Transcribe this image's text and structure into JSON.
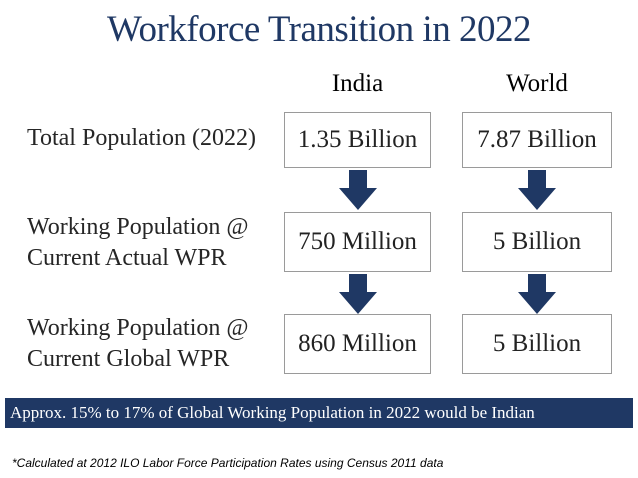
{
  "title": "Workforce Transition in 2022",
  "columns": {
    "india": "India",
    "world": "World"
  },
  "rows": [
    {
      "label_lines": [
        "Total Population (2022)"
      ],
      "india": "1.35 Billion",
      "world": "7.87 Billion"
    },
    {
      "label_lines": [
        "Working Population @",
        "Current Actual WPR"
      ],
      "india": "750 Million",
      "world": "5 Billion"
    },
    {
      "label_lines": [
        "Working Population @",
        "Current Global WPR"
      ],
      "india": "860 Million",
      "world": "5 Billion"
    }
  ],
  "banner": "Approx. 15% to 17% of Global Working Population in 2022 would be Indian",
  "footnote": "*Calculated at 2012 ILO Labor Force Participation Rates using Census 2011 data",
  "colors": {
    "title": "#1f3864",
    "banner_bg": "#1f3864",
    "arrow": "#1f3864"
  },
  "icons": {
    "arrow": "down-arrow-icon"
  }
}
